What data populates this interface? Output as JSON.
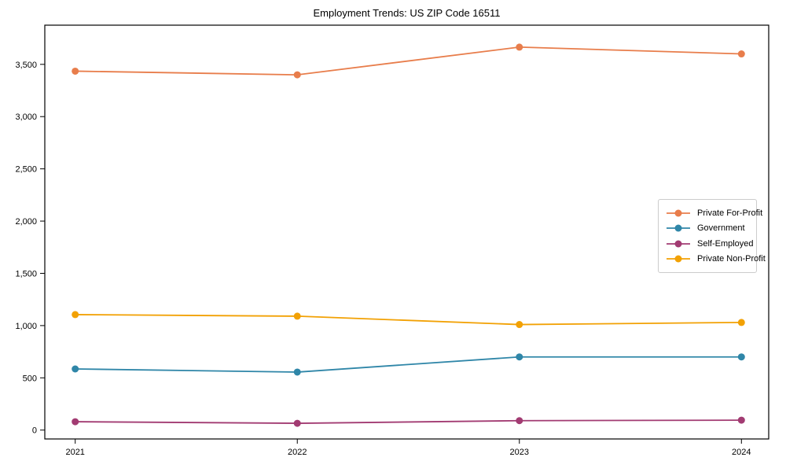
{
  "chart_data": {
    "type": "line",
    "title": "Employment Trends: US ZIP Code 16511",
    "xlabel": "",
    "ylabel": "",
    "x": [
      "2021",
      "2022",
      "2023",
      "2024"
    ],
    "series": [
      {
        "name": "Private For-Profit",
        "color": "#E87D4B",
        "values": [
          3435,
          3400,
          3665,
          3600
        ]
      },
      {
        "name": "Government",
        "color": "#2F86A8",
        "values": [
          585,
          555,
          700,
          700
        ]
      },
      {
        "name": "Self-Employed",
        "color": "#A23B72",
        "values": [
          80,
          65,
          90,
          95
        ]
      },
      {
        "name": "Private Non-Profit",
        "color": "#F2A104",
        "values": [
          1105,
          1090,
          1010,
          1030
        ]
      }
    ],
    "y_ticks": [
      {
        "value": 0,
        "label": "0"
      },
      {
        "value": 500,
        "label": "500"
      },
      {
        "value": 1000,
        "label": "1,000"
      },
      {
        "value": 1500,
        "label": "1,500"
      },
      {
        "value": 2000,
        "label": "2,000"
      },
      {
        "value": 2500,
        "label": "2,500"
      },
      {
        "value": 3000,
        "label": "3,000"
      },
      {
        "value": 3500,
        "label": "3,500"
      }
    ],
    "ylim": [
      -85,
      3875
    ],
    "grid": false,
    "legend_position": "center-right",
    "axis_color": "#000000"
  }
}
